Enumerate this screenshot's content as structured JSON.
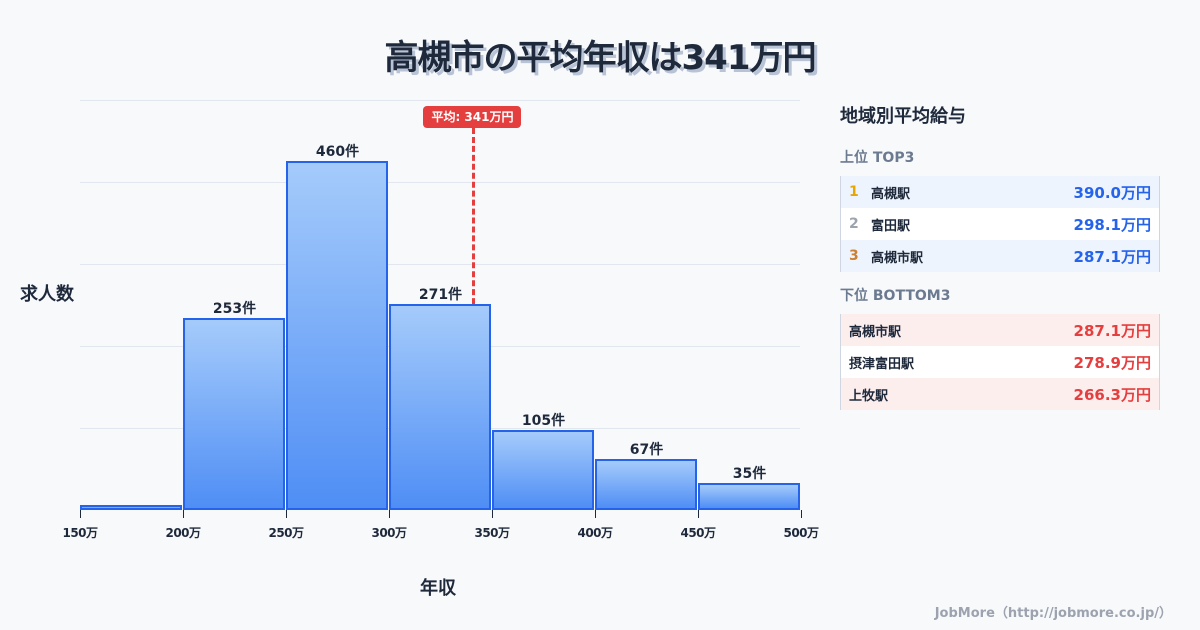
{
  "title": "高槻市の平均年収は341万円",
  "chart_data": {
    "type": "bar",
    "title": "高槻市の平均年収は341万円",
    "xlabel": "年収",
    "ylabel": "求人数",
    "categories": [
      "150-200万",
      "200-250万",
      "250-300万",
      "300-350万",
      "350-400万",
      "400-450万",
      "450-500万"
    ],
    "bin_edges": [
      "150万",
      "200万",
      "250万",
      "300万",
      "350万",
      "400万",
      "450万",
      "500万"
    ],
    "values": [
      6,
      253,
      460,
      271,
      105,
      67,
      35
    ],
    "value_labels": [
      "",
      "253件",
      "460件",
      "271件",
      "105件",
      "67件",
      "35件"
    ],
    "ylim": [
      0,
      540
    ],
    "grid": true,
    "average": {
      "value": 341,
      "label": "平均: 341万円",
      "color": "#e53e3e"
    },
    "bar_color": "#4f8ef5",
    "bar_border_color": "#2563eb"
  },
  "panel": {
    "title": "地域別平均給与",
    "top": {
      "title": "上位 TOP3",
      "items": [
        {
          "rank": "1",
          "name": "高槻駅",
          "value": "390.0万円",
          "rank_color": "#e6a700"
        },
        {
          "rank": "2",
          "name": "富田駅",
          "value": "298.1万円",
          "rank_color": "#9ca3af"
        },
        {
          "rank": "3",
          "name": "高槻市駅",
          "value": "287.1万円",
          "rank_color": "#cd7f32"
        }
      ]
    },
    "bottom": {
      "title": "下位 BOTTOM3",
      "items": [
        {
          "name": "高槻市駅",
          "value": "287.1万円"
        },
        {
          "name": "摂津富田駅",
          "value": "278.9万円"
        },
        {
          "name": "上牧駅",
          "value": "266.3万円"
        }
      ]
    }
  },
  "footer": "JobMore（http://jobmore.co.jp/）"
}
